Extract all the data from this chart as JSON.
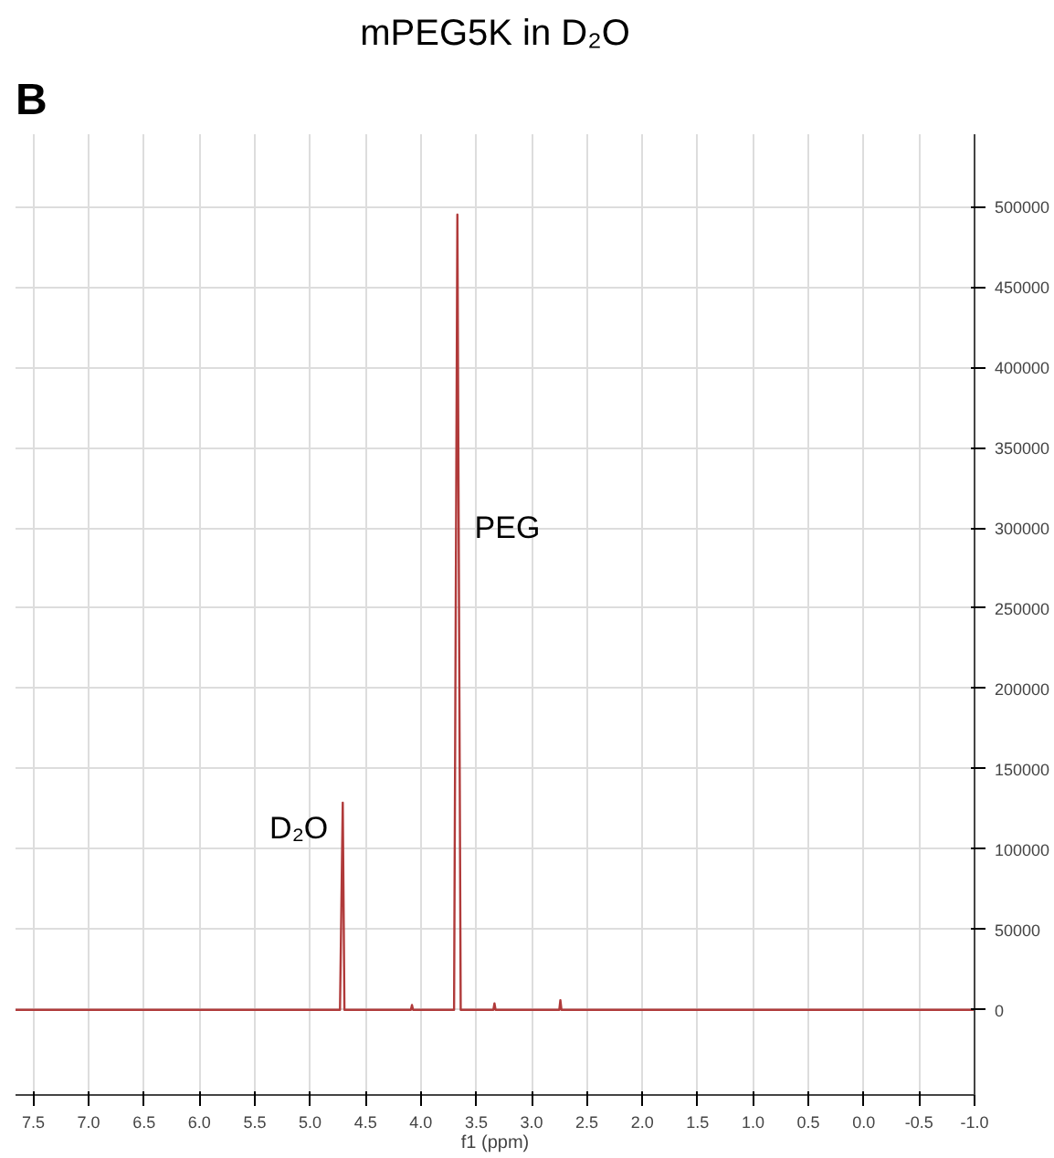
{
  "chart_data": {
    "type": "line",
    "title": "mPEG5K in D₂O",
    "xlabel": "f1 (ppm)",
    "x": [
      7.66,
      4.73,
      4.705,
      4.69,
      4.09,
      4.08,
      4.07,
      3.7,
      3.67,
      3.64,
      3.345,
      3.335,
      3.325,
      2.75,
      2.74,
      2.73,
      -1.0
    ],
    "series": [
      {
        "color": "#b03a3a",
        "values": [
          0,
          0,
          129000,
          0,
          0,
          3000,
          0,
          0,
          495000,
          0,
          0,
          4000,
          0,
          0,
          6000,
          0,
          0
        ]
      }
    ],
    "xlim": [
      7.66,
      -1.0
    ],
    "xticks": [
      7.5,
      {
        "value": 7.0,
        "label": "7.0"
      },
      6.5,
      {
        "value": 6.0,
        "label": "6.0"
      },
      5.5,
      {
        "value": 5.0,
        "label": "5.0"
      },
      4.5,
      {
        "value": 4.0,
        "label": "4.0"
      },
      3.5,
      {
        "value": 3.0,
        "label": "3.0"
      },
      2.5,
      {
        "value": 2.0,
        "label": "2.0"
      },
      1.5,
      {
        "value": 1.0,
        "label": "1.0"
      },
      0.5,
      {
        "value": 0.0,
        "label": "0.0"
      },
      -0.5,
      {
        "value": -1.0,
        "label": "-1.0"
      }
    ],
    "ylim": [
      -53000,
      545000
    ],
    "yticks": [
      0,
      50000,
      100000,
      150000,
      200000,
      250000,
      300000,
      350000,
      400000,
      450000,
      500000
    ],
    "grid": true,
    "marker": "none",
    "line_style": "solid",
    "annotations": [
      "B",
      {
        "text": "PEG",
        "x": 3.68,
        "y": 300000
      },
      {
        "text": "D₂O",
        "x": 4.705,
        "y": 129000
      }
    ]
  }
}
